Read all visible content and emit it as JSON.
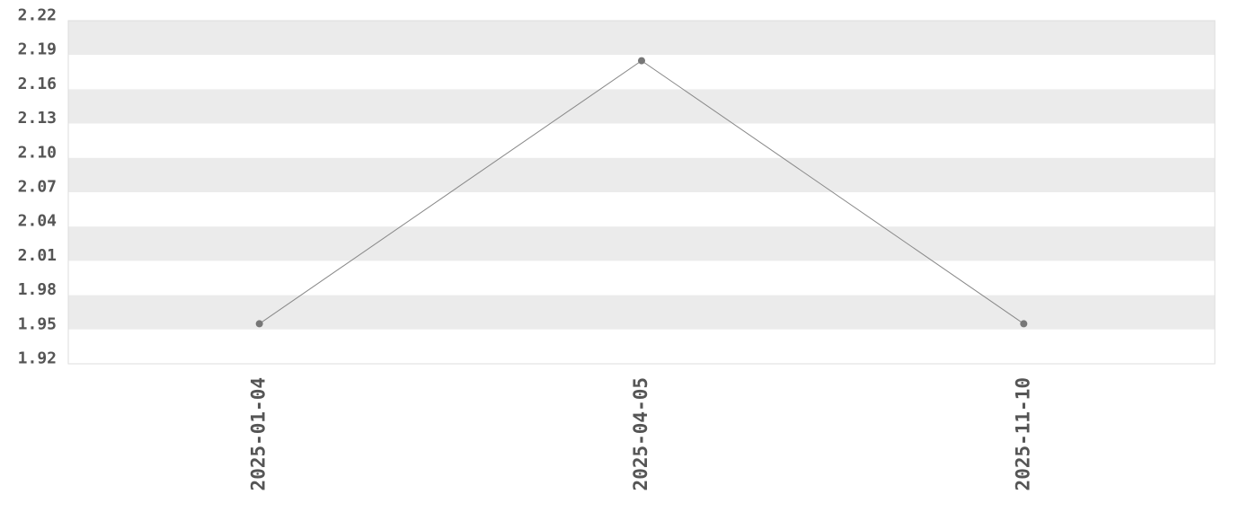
{
  "chart_data": {
    "type": "line",
    "title": "",
    "xlabel": "",
    "ylabel": "",
    "categories": [
      "2025-01-04",
      "2025-04-05",
      "2025-11-10"
    ],
    "values": [
      1.955,
      2.185,
      1.955
    ],
    "ylim": [
      1.92,
      2.22
    ],
    "yticks": [
      "1.92",
      "1.95",
      "1.98",
      "2.01",
      "2.04",
      "2.07",
      "2.10",
      "2.13",
      "2.16",
      "2.19",
      "2.22"
    ],
    "grid": "alternating horizontal bands",
    "legend": "none",
    "colors": {
      "line": "#888888",
      "marker": "#777777",
      "band": "#ebebeb",
      "text": "#555555"
    }
  }
}
